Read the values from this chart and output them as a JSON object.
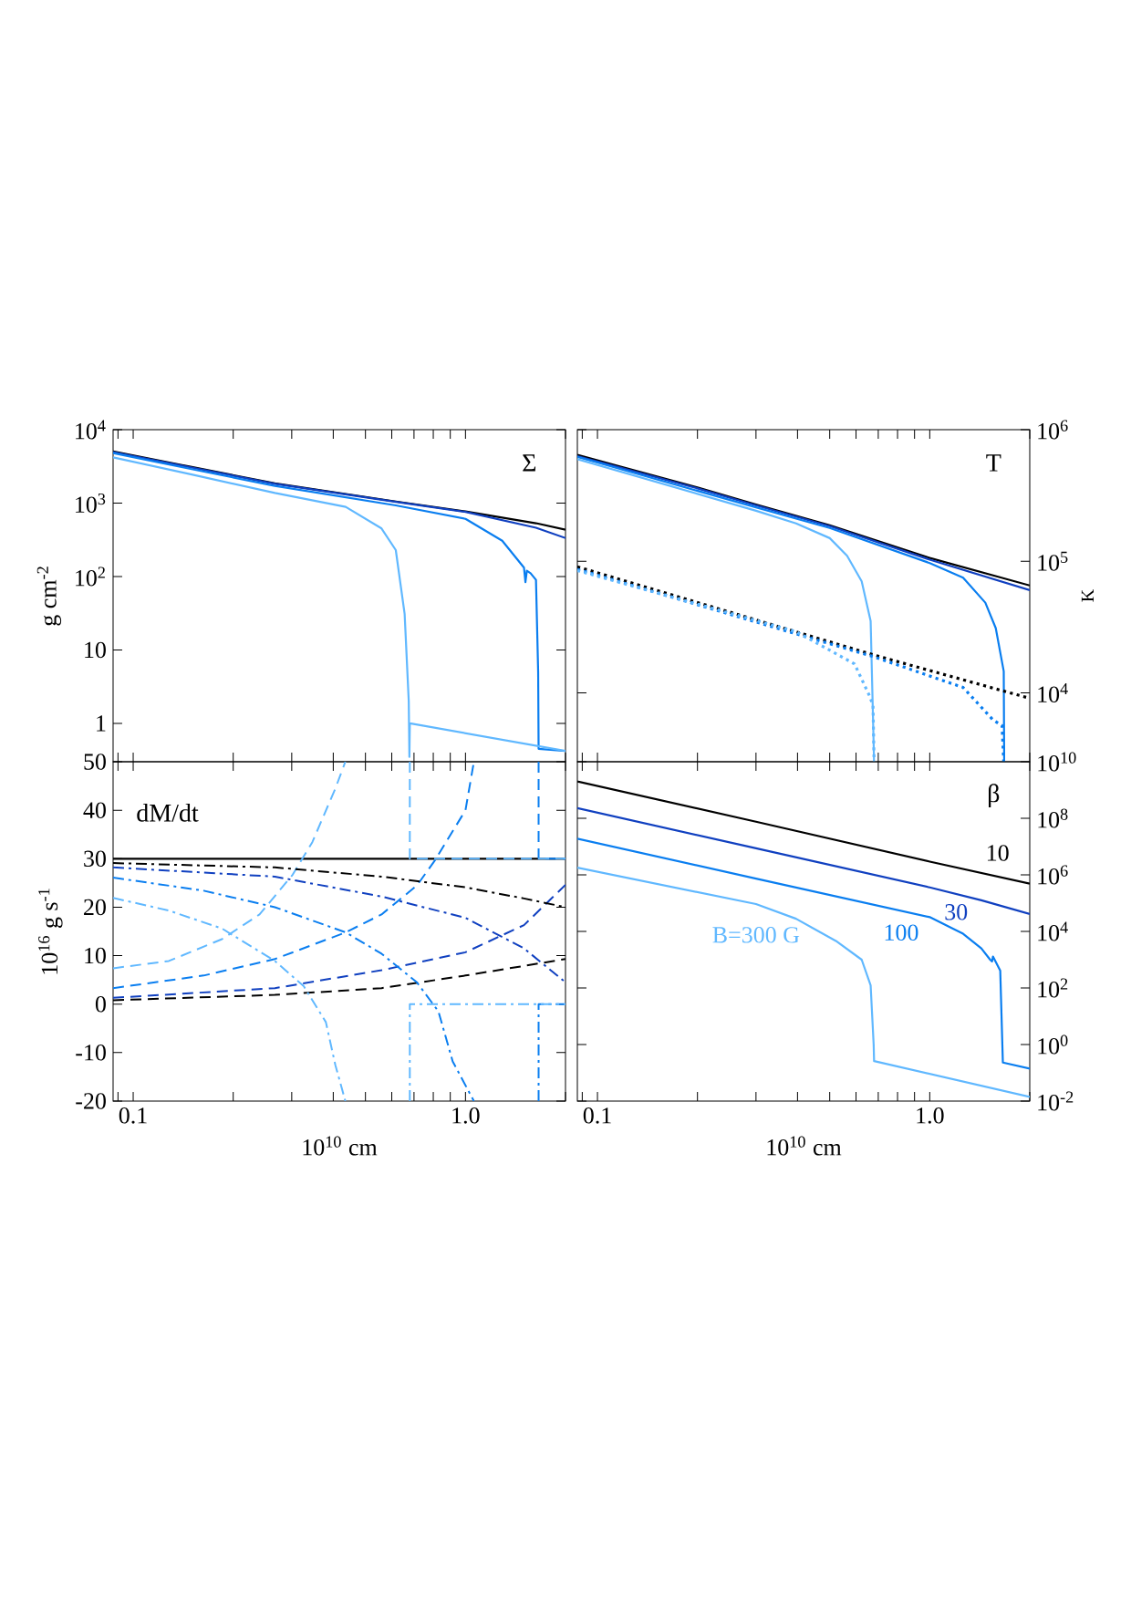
{
  "chart_data": [
    {
      "type": "line",
      "title": "Σ",
      "ylabel": "g cm$^{-2}$",
      "log": "xy",
      "xlim": [
        0.087,
        2.0
      ],
      "ylim": [
        0.3,
        10000
      ],
      "tick_labels": "y",
      "xticks": [
        {
          "value": 0.09,
          "label": null
        },
        {
          "value": 0.1,
          "label": null
        },
        {
          "value": 0.2,
          "label": null
        },
        {
          "value": 0.3,
          "label": null
        },
        {
          "value": 0.4,
          "label": null
        },
        {
          "value": 0.5,
          "label": null
        },
        {
          "value": 0.6,
          "label": null
        },
        {
          "value": 0.7,
          "label": null
        },
        {
          "value": 0.8,
          "label": null
        },
        {
          "value": 0.9,
          "label": null
        },
        {
          "value": 1,
          "label": null
        },
        {
          "value": 2,
          "label": null
        }
      ],
      "yticks": [
        1,
        10,
        {
          "value": 100,
          "label": "10$^{2}$"
        },
        {
          "value": 1000,
          "label": "10$^{3}$"
        },
        {
          "value": 10000,
          "label": "10$^{4}$"
        }
      ],
      "series": [
        {
          "color": "#000000",
          "line_style": "solid",
          "x": [
            0.087,
            0.15,
            0.267,
            0.617,
            1.0,
            1.63,
            2.0
          ],
          "values": [
            5070,
            3100,
            1860,
            1050,
            770,
            532,
            435
          ]
        },
        {
          "color": "#1040c0",
          "line_style": "solid",
          "x": [
            0.087,
            0.15,
            0.267,
            0.617,
            1.0,
            1.63,
            2.0
          ],
          "values": [
            4950,
            3050,
            1830,
            1040,
            760,
            461,
            334
          ]
        },
        {
          "color": "#0a7ef0",
          "line_style": "solid",
          "x": [
            0.087,
            0.15,
            0.267,
            0.617,
            1.0,
            1.29,
            1.5,
            1.515,
            1.53,
            1.57,
            1.63,
            1.655,
            1.66,
            2.0
          ],
          "values": [
            4810,
            2900,
            1715,
            930,
            611,
            307,
            132,
            84,
            120,
            111,
            90,
            5,
            0.45,
            0.42
          ]
        },
        {
          "color": "#60b8ff",
          "line_style": "solid",
          "x": [
            0.087,
            0.15,
            0.267,
            0.436,
            0.559,
            0.617,
            0.656,
            0.675,
            0.678,
            0.68,
            2.0
          ],
          "values": [
            4200,
            2450,
            1375,
            887,
            451,
            229,
            31,
            2,
            0.35,
            1.0,
            0.42
          ]
        }
      ]
    },
    {
      "type": "line",
      "title": "T",
      "ylabel": "K",
      "log": "xy",
      "xlim": [
        0.087,
        2.0
      ],
      "ylim": [
        3000,
        1000000
      ],
      "tick_labels": "y",
      "xticks": [
        {
          "value": 0.09,
          "label": null
        },
        {
          "value": 0.1,
          "label": null
        },
        {
          "value": 0.2,
          "label": null
        },
        {
          "value": 0.3,
          "label": null
        },
        {
          "value": 0.4,
          "label": null
        },
        {
          "value": 0.5,
          "label": null
        },
        {
          "value": 0.6,
          "label": null
        },
        {
          "value": 0.7,
          "label": null
        },
        {
          "value": 0.8,
          "label": null
        },
        {
          "value": 0.9,
          "label": null
        },
        {
          "value": 1,
          "label": null
        },
        {
          "value": 2,
          "label": null
        }
      ],
      "yticks": [
        {
          "value": 10000,
          "label": "10$^{4}$"
        },
        {
          "value": 100000,
          "label": "10$^{5}$"
        },
        {
          "value": 1000000,
          "label": "10$^{6}$"
        }
      ],
      "series": [
        {
          "color": "#000000",
          "line_style": "solid",
          "x": [
            0.087,
            0.2,
            0.3,
            0.5,
            1.0,
            2.0
          ],
          "values": [
            643000,
            364000,
            270000,
            188000,
            106000,
            65500
          ]
        },
        {
          "color": "#1040c0",
          "line_style": "solid",
          "x": [
            0.087,
            0.2,
            0.3,
            0.5,
            1.0,
            2.0
          ],
          "values": [
            630000,
            358000,
            266000,
            185000,
            103000,
            60300
          ]
        },
        {
          "color": "#0a7ef0",
          "line_style": "solid",
          "x": [
            0.087,
            0.3,
            0.5,
            1.0,
            1.26,
            1.47,
            1.58,
            1.67,
            1.675
          ],
          "values": [
            622000,
            257000,
            179000,
            96900,
            75200,
            48500,
            31100,
            14600,
            3000
          ]
        },
        {
          "color": "#60b8ff",
          "line_style": "solid",
          "x": [
            0.087,
            0.3,
            0.396,
            0.5,
            0.564,
            0.624,
            0.664,
            0.68
          ],
          "values": [
            597000,
            242000,
            194000,
            150000,
            110000,
            70500,
            35200,
            3000
          ]
        },
        {
          "color": "#000000",
          "line_style": "dotted",
          "x": [
            0.087,
            0.68,
            2.0
          ],
          "values": [
            90800,
            19400,
            9100
          ]
        },
        {
          "color": "#0a7ef0",
          "line_style": "dotted",
          "x": [
            0.087,
            0.68,
            1.26,
            1.55,
            1.65,
            1.67
          ],
          "values": [
            87000,
            18800,
            11000,
            6240,
            5650,
            3000
          ]
        },
        {
          "color": "#60b8ff",
          "line_style": "dotted",
          "x": [
            0.087,
            0.396,
            0.594,
            0.66,
            0.675,
            0.68
          ],
          "values": [
            85000,
            29200,
            16600,
            9400,
            8000,
            3000
          ]
        }
      ]
    },
    {
      "type": "line",
      "title": "dM/dt",
      "xlabel": "10$^{10}$ cm",
      "ylabel": "10$^{16}$ g s$^{-1}$",
      "log": "x",
      "xlim": [
        0.087,
        2.0
      ],
      "ylim": [
        -20,
        50
      ],
      "xticks": [
        {
          "value": 0.09,
          "label": null
        },
        0.1,
        {
          "value": 0.2,
          "label": null
        },
        {
          "value": 0.3,
          "label": null
        },
        {
          "value": 0.4,
          "label": null
        },
        {
          "value": 0.5,
          "label": null
        },
        {
          "value": 0.6,
          "label": null
        },
        {
          "value": 0.7,
          "label": null
        },
        {
          "value": 0.8,
          "label": null
        },
        {
          "value": 0.9,
          "label": null
        },
        {
          "value": 1,
          "label": "1.0"
        },
        {
          "value": 2,
          "label": null
        }
      ],
      "yticks": [
        -20,
        -10,
        0,
        10,
        20,
        30,
        40,
        50
      ],
      "series": [
        {
          "color": "#000000",
          "line_style": "solid",
          "x": [
            0.087,
            2.0
          ],
          "values": [
            30,
            30
          ]
        },
        {
          "color": "#000000",
          "line_style": "dashed",
          "x": [
            0.087,
            0.267,
            0.559,
            1.0,
            2.0
          ],
          "values": [
            0.8,
            1.9,
            3.3,
            5.9,
            9.3
          ]
        },
        {
          "color": "#1040c0",
          "line_style": "dashed",
          "x": [
            0.087,
            0.267,
            0.559,
            1.0,
            1.5,
            2.0
          ],
          "values": [
            1.3,
            3.3,
            7.0,
            10.7,
            16.3,
            24.6
          ]
        },
        {
          "color": "#0a7ef0",
          "line_style": "dashed",
          "x": [
            0.087,
            0.163,
            0.267,
            0.436,
            0.559,
            0.715,
            0.81,
            1.0,
            1.06,
            1.3,
            1.66,
            1.66,
            2.0
          ],
          "values": [
            3.3,
            5.9,
            9.3,
            14.8,
            18.5,
            24.5,
            29.7,
            40,
            50,
            null,
            50,
            30,
            30
          ]
        },
        {
          "color": "#60b8ff",
          "line_style": "dashed",
          "x": [
            0.087,
            0.128,
            0.185,
            0.24,
            0.302,
            0.346,
            0.406,
            0.435,
            0.55,
            0.68,
            0.68,
            2.0
          ],
          "values": [
            7.4,
            8.9,
            13.4,
            18.5,
            26.7,
            33.4,
            44.5,
            50,
            null,
            50,
            30,
            30
          ]
        },
        {
          "color": "#000000",
          "line_style": "dashdot",
          "x": [
            0.087,
            0.267,
            0.559,
            1.0,
            1.5,
            2.0
          ],
          "values": [
            29.1,
            28.2,
            26.3,
            24.1,
            21.8,
            20.0
          ]
        },
        {
          "color": "#1040c0",
          "line_style": "dashdot",
          "x": [
            0.087,
            0.267,
            0.559,
            1.0,
            1.5,
            2.0
          ],
          "values": [
            28.2,
            26.3,
            22.2,
            17.8,
            11.5,
            4.5
          ]
        },
        {
          "color": "#0a7ef0",
          "line_style": "dashdot",
          "x": [
            0.087,
            0.163,
            0.267,
            0.436,
            0.559,
            0.714,
            0.829,
            0.915,
            1.06,
            1.3,
            1.66,
            1.66,
            2.0
          ],
          "values": [
            26.1,
            23.4,
            20.0,
            14.8,
            10.4,
            4.5,
            -1.5,
            -11.8,
            -20,
            null,
            -20,
            0,
            0
          ]
        },
        {
          "color": "#60b8ff",
          "line_style": "dashdot",
          "x": [
            0.087,
            0.128,
            0.185,
            0.267,
            0.326,
            0.38,
            0.406,
            0.435,
            0.55,
            0.68,
            0.68,
            2.0
          ],
          "values": [
            21.9,
            19.3,
            15.6,
            8.9,
            3.7,
            -3.7,
            -12.6,
            -20,
            null,
            -20,
            0,
            0
          ]
        }
      ]
    },
    {
      "type": "line",
      "title": "β",
      "xlabel": "10$^{10}$ cm",
      "log": "xy",
      "xlim": [
        0.087,
        2.0
      ],
      "ylim": [
        0.01,
        10000000000
      ],
      "xticks": [
        {
          "value": 0.09,
          "label": null
        },
        0.1,
        {
          "value": 0.2,
          "label": null
        },
        {
          "value": 0.3,
          "label": null
        },
        {
          "value": 0.4,
          "label": null
        },
        {
          "value": 0.5,
          "label": null
        },
        {
          "value": 0.6,
          "label": null
        },
        {
          "value": 0.7,
          "label": null
        },
        {
          "value": 0.8,
          "label": null
        },
        {
          "value": 0.9,
          "label": null
        },
        {
          "value": 1,
          "label": "1.0"
        },
        {
          "value": 2,
          "label": null
        }
      ],
      "yticks": [
        {
          "value": 0.01,
          "label": "10$^{-2}$"
        },
        {
          "value": 1,
          "label": "10$^{0}$"
        },
        {
          "value": 100,
          "label": "10$^{2}$"
        },
        {
          "value": 10000,
          "label": "10$^{4}$"
        },
        {
          "value": 1000000,
          "label": "10$^{6}$"
        },
        {
          "value": 100000000,
          "label": "10$^{8}$"
        },
        {
          "value": 10000000000,
          "label": "10$^{10}$"
        }
      ],
      "series": [
        {
          "name": "10",
          "color": "#000000",
          "line_style": "solid",
          "x": [
            0.087,
            0.3,
            1.0,
            2.0
          ],
          "values": [
            2000000000,
            76000000,
            2950000,
            490000
          ]
        },
        {
          "name": "30",
          "color": "#1040c0",
          "line_style": "solid",
          "x": [
            0.087,
            0.3,
            1.0,
            1.43,
            2.0
          ],
          "values": [
            230000000,
            8700000,
            360000,
            126000,
            41000
          ]
        },
        {
          "name": "100",
          "color": "#0a7ef0",
          "line_style": "solid",
          "x": [
            0.087,
            0.3,
            1.0,
            1.26,
            1.43,
            1.52,
            1.54,
            1.55,
            1.63,
            1.66,
            2.0
          ],
          "values": [
            19000000,
            740000,
            32000,
            8300,
            2500,
            1000,
            870,
            1290,
            410,
            0.23,
            0.14
          ]
        },
        {
          "name": "B=300 G",
          "color": "#60b8ff",
          "line_style": "solid",
          "x": [
            0.087,
            0.3,
            0.396,
            0.522,
            0.624,
            0.664,
            0.678,
            0.68,
            2.0
          ],
          "values": [
            1800000,
            93000,
            28000,
            4600,
            1000,
            123,
            1,
            0.26,
            0.014
          ]
        }
      ]
    }
  ]
}
